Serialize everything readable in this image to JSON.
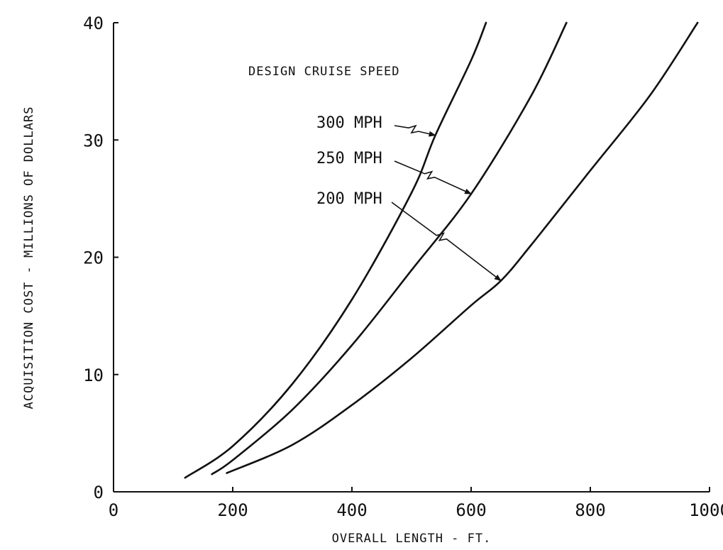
{
  "chart_data": {
    "type": "line",
    "title": "",
    "xlabel": "OVERALL LENGTH - FT.",
    "ylabel": "ACQUISITION COST - MILLIONS OF DOLLARS",
    "xlim": [
      0,
      1000
    ],
    "ylim": [
      0,
      40
    ],
    "x_ticks": [
      "0",
      "200",
      "400",
      "600",
      "800",
      "1000"
    ],
    "y_ticks": [
      "0",
      "10",
      "20",
      "30",
      "40"
    ],
    "grid": false,
    "legend_title": "DESIGN CRUISE SPEED",
    "series": [
      {
        "name": "300 MPH",
        "points": [
          [
            120,
            1.2
          ],
          [
            200,
            3.9
          ],
          [
            300,
            9.2
          ],
          [
            400,
            16.4
          ],
          [
            500,
            25.5
          ],
          [
            540,
            30.4
          ],
          [
            600,
            36.8
          ],
          [
            625,
            40.0
          ]
        ],
        "arrow_point": [
          540,
          30.4
        ]
      },
      {
        "name": "250 MPH",
        "points": [
          [
            165,
            1.5
          ],
          [
            200,
            2.7
          ],
          [
            300,
            7.0
          ],
          [
            400,
            12.5
          ],
          [
            500,
            18.9
          ],
          [
            600,
            25.4
          ],
          [
            700,
            33.7
          ],
          [
            760,
            40.0
          ]
        ],
        "arrow_point": [
          600,
          25.4
        ]
      },
      {
        "name": "200 MPH",
        "points": [
          [
            190,
            1.6
          ],
          [
            300,
            4.0
          ],
          [
            400,
            7.4
          ],
          [
            500,
            11.4
          ],
          [
            600,
            15.9
          ],
          [
            650,
            18.0
          ],
          [
            700,
            21.0
          ],
          [
            800,
            27.4
          ],
          [
            900,
            33.8
          ],
          [
            980,
            40.0
          ]
        ],
        "arrow_point": [
          650,
          18.0
        ]
      }
    ]
  }
}
